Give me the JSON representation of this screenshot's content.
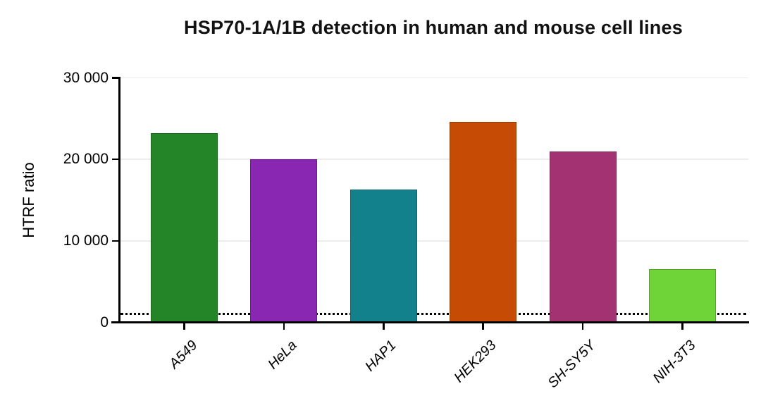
{
  "chart_data": {
    "type": "bar",
    "title": "HSP70-1A/1B detection in human and mouse cell lines",
    "categories": [
      "A549",
      "HeLa",
      "HAP1",
      "HEK293",
      "SH-SY5Y",
      "NIH-3T3"
    ],
    "values": [
      23200,
      20000,
      16300,
      24600,
      21000,
      6500
    ],
    "bar_colors": [
      "#238527",
      "#8A27B2",
      "#12818B",
      "#C64B04",
      "#A23271",
      "#6FD437"
    ],
    "xlabel": "",
    "ylabel": "HTRF ratio",
    "ylim": [
      0,
      30000
    ],
    "yticks": [
      0,
      10000,
      20000,
      30000
    ],
    "ytick_labels": [
      "0",
      "10 000",
      "20 000",
      "30 000"
    ],
    "grid": true,
    "legend": false,
    "baseline": {
      "value": 1000,
      "style": "dotted",
      "color": "#000000"
    },
    "axis_color": "#000000",
    "grid_color": "#ececec"
  }
}
